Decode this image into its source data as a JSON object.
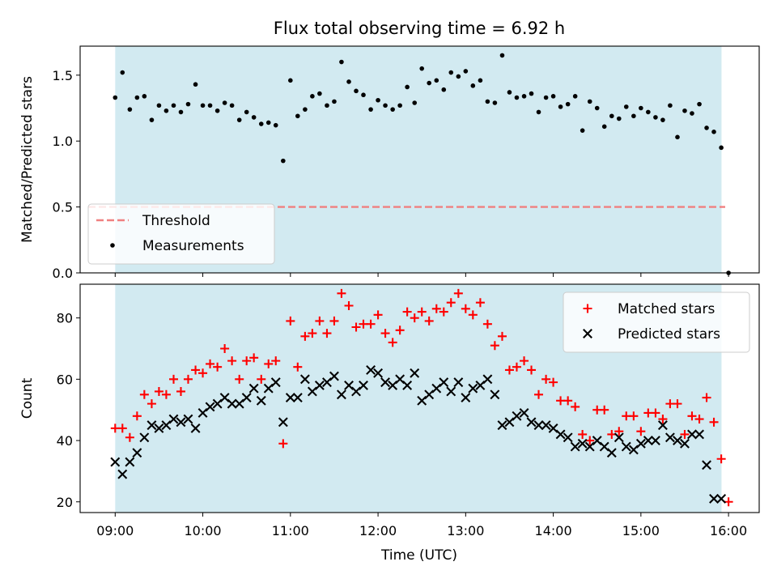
{
  "chart_data": {
    "title": "Flux total observing time = 6.92 h",
    "x_axis": {
      "label": "Time (UTC)",
      "ticks": [
        "09:00",
        "10:00",
        "11:00",
        "12:00",
        "13:00",
        "14:00",
        "15:00",
        "16:00"
      ],
      "range_hours": [
        8.6,
        16.35
      ]
    },
    "observing_window_hours": [
      9.0,
      15.92
    ],
    "colors": {
      "shade": "#add8e6",
      "threshold": "#f08080",
      "measurements": "#000000",
      "matched": "#ff0000",
      "predicted": "#000000"
    },
    "charts": [
      {
        "type": "scatter",
        "ylabel": "Matched/Predicted stars",
        "ylim": [
          0.0,
          1.72
        ],
        "yticks": [
          "0.0",
          "0.5",
          "1.0",
          "1.5"
        ],
        "legend_position": "lower-left",
        "threshold": {
          "name": "Threshold",
          "value": 0.5
        },
        "series": [
          {
            "name": "Measurements",
            "marker": "dot",
            "x": [
              9.0,
              9.083,
              9.167,
              9.25,
              9.333,
              9.417,
              9.5,
              9.583,
              9.667,
              9.75,
              9.833,
              9.917,
              10.0,
              10.083,
              10.167,
              10.25,
              10.333,
              10.417,
              10.5,
              10.583,
              10.667,
              10.75,
              10.833,
              10.917,
              11.0,
              11.083,
              11.167,
              11.25,
              11.333,
              11.417,
              11.5,
              11.583,
              11.667,
              11.75,
              11.833,
              11.917,
              12.0,
              12.083,
              12.167,
              12.25,
              12.333,
              12.417,
              12.5,
              12.583,
              12.667,
              12.75,
              12.833,
              12.917,
              13.0,
              13.083,
              13.167,
              13.25,
              13.333,
              13.417,
              13.5,
              13.583,
              13.667,
              13.75,
              13.833,
              13.917,
              14.0,
              14.083,
              14.167,
              14.25,
              14.333,
              14.417,
              14.5,
              14.583,
              14.667,
              14.75,
              14.833,
              14.917,
              15.0,
              15.083,
              15.167,
              15.25,
              15.333,
              15.417,
              15.5,
              15.583,
              15.667,
              15.75,
              15.833,
              15.917,
              16.0
            ],
            "y": [
              1.33,
              1.52,
              1.24,
              1.33,
              1.34,
              1.16,
              1.27,
              1.23,
              1.27,
              1.22,
              1.28,
              1.43,
              1.27,
              1.27,
              1.23,
              1.29,
              1.27,
              1.16,
              1.22,
              1.18,
              1.13,
              1.14,
              1.12,
              0.85,
              1.46,
              1.19,
              1.24,
              1.34,
              1.36,
              1.27,
              1.3,
              1.6,
              1.45,
              1.38,
              1.35,
              1.24,
              1.31,
              1.27,
              1.24,
              1.27,
              1.41,
              1.29,
              1.55,
              1.44,
              1.46,
              1.39,
              1.52,
              1.49,
              1.53,
              1.42,
              1.46,
              1.3,
              1.29,
              1.65,
              1.37,
              1.33,
              1.34,
              1.36,
              1.22,
              1.33,
              1.34,
              1.26,
              1.28,
              1.34,
              1.08,
              1.3,
              1.25,
              1.11,
              1.19,
              1.17,
              1.26,
              1.19,
              1.25,
              1.22,
              1.18,
              1.16,
              1.27,
              1.03,
              1.23,
              1.21,
              1.28,
              1.1,
              1.07,
              0.95,
              0.0
            ]
          }
        ]
      },
      {
        "type": "scatter",
        "ylabel": "Count",
        "ylim": [
          16.5,
          91.0
        ],
        "yticks": [
          "20",
          "40",
          "60",
          "80"
        ],
        "legend_position": "top-right",
        "series": [
          {
            "name": "Matched stars",
            "marker": "plus",
            "x": [
              9.0,
              9.083,
              9.167,
              9.25,
              9.333,
              9.417,
              9.5,
              9.583,
              9.667,
              9.75,
              9.833,
              9.917,
              10.0,
              10.083,
              10.167,
              10.25,
              10.333,
              10.417,
              10.5,
              10.583,
              10.667,
              10.75,
              10.833,
              10.917,
              11.0,
              11.083,
              11.167,
              11.25,
              11.333,
              11.417,
              11.5,
              11.583,
              11.667,
              11.75,
              11.833,
              11.917,
              12.0,
              12.083,
              12.167,
              12.25,
              12.333,
              12.417,
              12.5,
              12.583,
              12.667,
              12.75,
              12.833,
              12.917,
              13.0,
              13.083,
              13.167,
              13.25,
              13.333,
              13.417,
              13.5,
              13.583,
              13.667,
              13.75,
              13.833,
              13.917,
              14.0,
              14.083,
              14.167,
              14.25,
              14.333,
              14.417,
              14.5,
              14.583,
              14.667,
              14.75,
              14.833,
              14.917,
              15.0,
              15.083,
              15.167,
              15.25,
              15.333,
              15.417,
              15.5,
              15.583,
              15.667,
              15.75,
              15.833,
              15.917,
              16.0
            ],
            "y": [
              44,
              44,
              41,
              48,
              55,
              52,
              56,
              55,
              60,
              56,
              60,
              63,
              62,
              65,
              64,
              70,
              66,
              60,
              66,
              67,
              60,
              65,
              66,
              39,
              79,
              64,
              74,
              75,
              79,
              75,
              79,
              88,
              84,
              77,
              78,
              78,
              81,
              75,
              72,
              76,
              82,
              80,
              82,
              79,
              83,
              82,
              85,
              88,
              83,
              81,
              85,
              78,
              71,
              74,
              63,
              64,
              66,
              63,
              55,
              60,
              59,
              53,
              53,
              51,
              42,
              40,
              50,
              50,
              42,
              43,
              48,
              48,
              43,
              49,
              49,
              47,
              52,
              52,
              42,
              48,
              47,
              54,
              46,
              34,
              20
            ]
          },
          {
            "name": "Predicted stars",
            "marker": "x",
            "x": [
              9.0,
              9.083,
              9.167,
              9.25,
              9.333,
              9.417,
              9.5,
              9.583,
              9.667,
              9.75,
              9.833,
              9.917,
              10.0,
              10.083,
              10.167,
              10.25,
              10.333,
              10.417,
              10.5,
              10.583,
              10.667,
              10.75,
              10.833,
              10.917,
              11.0,
              11.083,
              11.167,
              11.25,
              11.333,
              11.417,
              11.5,
              11.583,
              11.667,
              11.75,
              11.833,
              11.917,
              12.0,
              12.083,
              12.167,
              12.25,
              12.333,
              12.417,
              12.5,
              12.583,
              12.667,
              12.75,
              12.833,
              12.917,
              13.0,
              13.083,
              13.167,
              13.25,
              13.333,
              13.417,
              13.5,
              13.583,
              13.667,
              13.75,
              13.833,
              13.917,
              14.0,
              14.083,
              14.167,
              14.25,
              14.333,
              14.417,
              14.5,
              14.583,
              14.667,
              14.75,
              14.833,
              14.917,
              15.0,
              15.083,
              15.167,
              15.25,
              15.333,
              15.417,
              15.5,
              15.583,
              15.667,
              15.75,
              15.833,
              15.917
            ],
            "y": [
              33,
              29,
              33,
              36,
              41,
              45,
              44,
              45,
              47,
              46,
              47,
              44,
              49,
              51,
              52,
              54,
              52,
              52,
              54,
              57,
              53,
              57,
              59,
              46,
              54,
              54,
              60,
              56,
              58,
              59,
              61,
              55,
              58,
              56,
              58,
              63,
              62,
              59,
              58,
              60,
              58,
              62,
              53,
              55,
              57,
              59,
              56,
              59,
              54,
              57,
              58,
              60,
              55,
              45,
              46,
              48,
              49,
              46,
              45,
              45,
              44,
              42,
              41,
              38,
              39,
              38,
              40,
              38,
              36,
              41,
              38,
              37,
              39,
              40,
              40,
              45,
              41,
              40,
              39,
              42,
              42,
              32,
              21,
              21
            ]
          }
        ]
      }
    ]
  }
}
